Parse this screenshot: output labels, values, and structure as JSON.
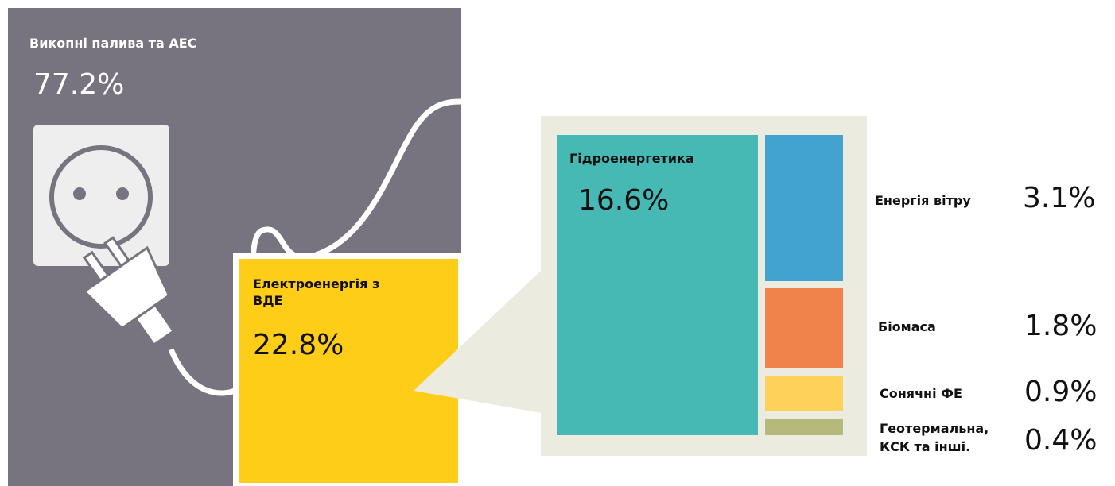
{
  "fossil": {
    "label": "Викопні палива та АЕС",
    "share": "77.2%"
  },
  "renewable": {
    "label_lines": [
      "Електроенергія з",
      "ВДЕ"
    ],
    "share": "22.8%"
  },
  "sources": [
    {
      "label_lines": [
        "Гідроенергетика"
      ],
      "share": "16.6%"
    },
    {
      "label_lines": [
        "Енергія вітру"
      ],
      "share": "3.1%"
    },
    {
      "label_lines": [
        "Біомаса"
      ],
      "share": "1.8%"
    },
    {
      "label_lines": [
        "Сонячні ФЕ"
      ],
      "share": "0.9%"
    },
    {
      "label_lines": [
        "Геотермальна,",
        "КСК та інші."
      ],
      "share": "0.4%"
    }
  ]
}
